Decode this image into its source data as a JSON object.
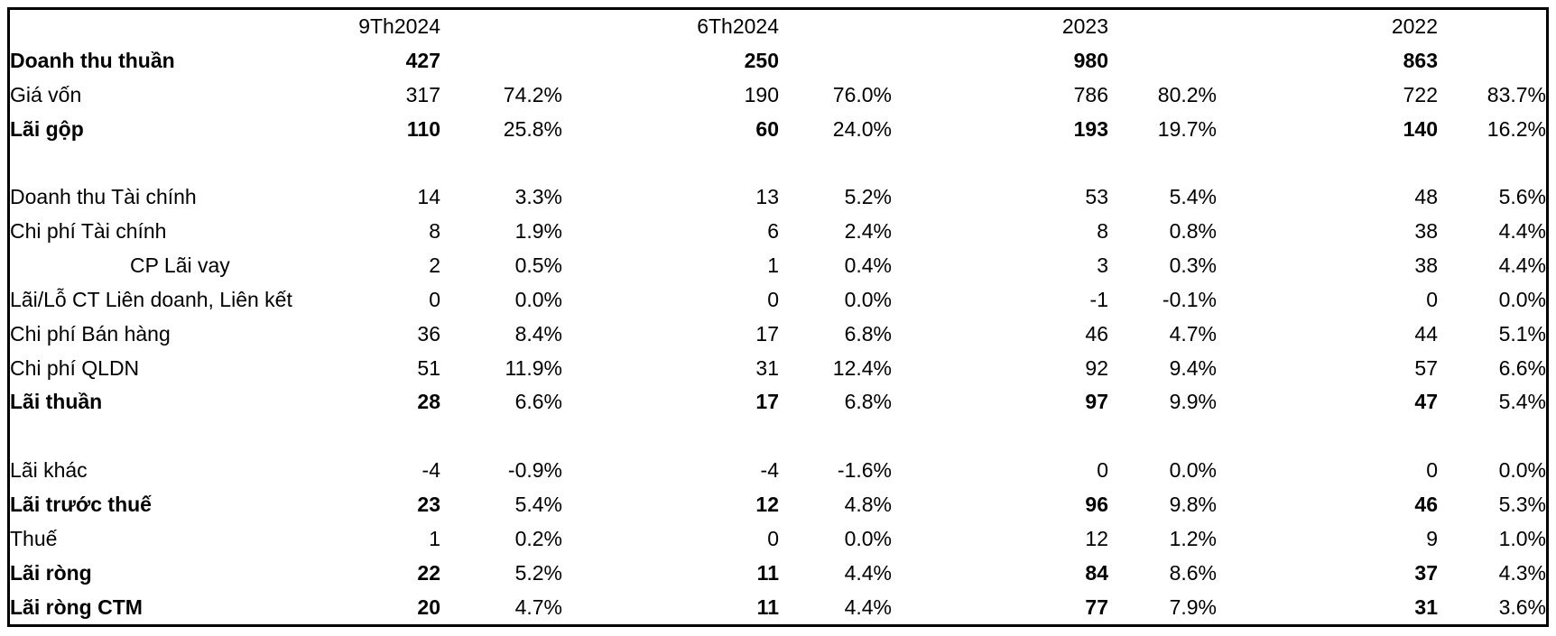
{
  "chart_data": {
    "type": "table",
    "columns": [
      "9Th2024",
      "6Th2024",
      "2023",
      "2022"
    ],
    "rows": [
      {
        "label": "Doanh thu thuần",
        "bold": true,
        "indent": false,
        "blank": false,
        "values": [
          "427",
          "250",
          "980",
          "863"
        ],
        "pcts": [
          "",
          "",
          "",
          ""
        ]
      },
      {
        "label": "Giá vốn",
        "bold": false,
        "indent": false,
        "blank": false,
        "values": [
          "317",
          "190",
          "786",
          "722"
        ],
        "pcts": [
          "74.2%",
          "76.0%",
          "80.2%",
          "83.7%"
        ]
      },
      {
        "label": "Lãi gộp",
        "bold": true,
        "indent": false,
        "blank": false,
        "values": [
          "110",
          "60",
          "193",
          "140"
        ],
        "pcts": [
          "25.8%",
          "24.0%",
          "19.7%",
          "16.2%"
        ]
      },
      {
        "label": "",
        "bold": false,
        "indent": false,
        "blank": true,
        "values": [
          "",
          "",
          "",
          ""
        ],
        "pcts": [
          "",
          "",
          "",
          ""
        ]
      },
      {
        "label": "Doanh thu Tài chính",
        "bold": false,
        "indent": false,
        "blank": false,
        "values": [
          "14",
          "13",
          "53",
          "48"
        ],
        "pcts": [
          "3.3%",
          "5.2%",
          "5.4%",
          "5.6%"
        ]
      },
      {
        "label": "Chi phí Tài chính",
        "bold": false,
        "indent": false,
        "blank": false,
        "values": [
          "8",
          "6",
          "8",
          "38"
        ],
        "pcts": [
          "1.9%",
          "2.4%",
          "0.8%",
          "4.4%"
        ]
      },
      {
        "label": "CP Lãi vay",
        "bold": false,
        "indent": true,
        "blank": false,
        "values": [
          "2",
          "1",
          "3",
          "38"
        ],
        "pcts": [
          "0.5%",
          "0.4%",
          "0.3%",
          "4.4%"
        ]
      },
      {
        "label": "Lãi/Lỗ CT Liên doanh, Liên kết",
        "bold": false,
        "indent": false,
        "blank": false,
        "values": [
          "0",
          "0",
          "-1",
          "0"
        ],
        "pcts": [
          "0.0%",
          "0.0%",
          "-0.1%",
          "0.0%"
        ]
      },
      {
        "label": "Chi phí Bán hàng",
        "bold": false,
        "indent": false,
        "blank": false,
        "values": [
          "36",
          "17",
          "46",
          "44"
        ],
        "pcts": [
          "8.4%",
          "6.8%",
          "4.7%",
          "5.1%"
        ]
      },
      {
        "label": "Chi phí QLDN",
        "bold": false,
        "indent": false,
        "blank": false,
        "values": [
          "51",
          "31",
          "92",
          "57"
        ],
        "pcts": [
          "11.9%",
          "12.4%",
          "9.4%",
          "6.6%"
        ]
      },
      {
        "label": "Lãi thuần",
        "bold": true,
        "indent": false,
        "blank": false,
        "values": [
          "28",
          "17",
          "97",
          "47"
        ],
        "pcts": [
          "6.6%",
          "6.8%",
          "9.9%",
          "5.4%"
        ]
      },
      {
        "label": "",
        "bold": false,
        "indent": false,
        "blank": true,
        "values": [
          "",
          "",
          "",
          ""
        ],
        "pcts": [
          "",
          "",
          "",
          ""
        ]
      },
      {
        "label": "Lãi khác",
        "bold": false,
        "indent": false,
        "blank": false,
        "values": [
          "-4",
          "-4",
          "0",
          "0"
        ],
        "pcts": [
          "-0.9%",
          "-1.6%",
          "0.0%",
          "0.0%"
        ]
      },
      {
        "label": "Lãi trước thuế",
        "bold": true,
        "indent": false,
        "blank": false,
        "values": [
          "23",
          "12",
          "96",
          "46"
        ],
        "pcts": [
          "5.4%",
          "4.8%",
          "9.8%",
          "5.3%"
        ]
      },
      {
        "label": "Thuế",
        "bold": false,
        "indent": false,
        "blank": false,
        "values": [
          "1",
          "0",
          "12",
          "9"
        ],
        "pcts": [
          "0.2%",
          "0.0%",
          "1.2%",
          "1.0%"
        ]
      },
      {
        "label": "Lãi ròng",
        "bold": true,
        "indent": false,
        "blank": false,
        "values": [
          "22",
          "11",
          "84",
          "37"
        ],
        "pcts": [
          "5.2%",
          "4.4%",
          "8.6%",
          "4.3%"
        ]
      },
      {
        "label": "Lãi ròng CTM",
        "bold": true,
        "indent": false,
        "blank": false,
        "values": [
          "20",
          "11",
          "77",
          "31"
        ],
        "pcts": [
          "4.7%",
          "4.4%",
          "7.9%",
          "3.6%"
        ]
      }
    ]
  },
  "styles": {
    "border_color": "#000000",
    "text_color": "#000000",
    "background_color": "#ffffff"
  }
}
